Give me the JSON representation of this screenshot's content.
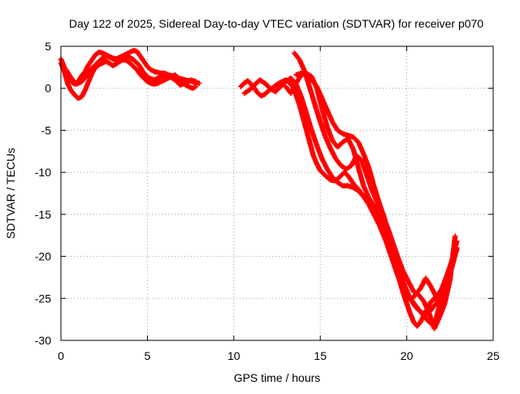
{
  "chart_data": {
    "type": "scatter",
    "title": "Day 122 of 2025, Sidereal Day-to-day VTEC variation (SDTVAR) for receiver p070",
    "xlabel": "GPS time / hours",
    "ylabel": "SDTVAR / TECUs",
    "xlim": [
      0,
      25
    ],
    "ylim": [
      -30,
      5
    ],
    "x_ticks": [
      0,
      5,
      10,
      15,
      20,
      25
    ],
    "y_ticks": [
      5,
      0,
      -5,
      -10,
      -15,
      -20,
      -25,
      -30
    ],
    "grid": true,
    "marker": "plus",
    "color": "#ff0000",
    "series": [
      {
        "x": [
          0.0,
          0.2,
          0.4,
          0.6,
          0.8,
          1.0,
          1.2,
          1.4,
          1.6,
          1.8,
          2.0,
          2.2,
          2.4,
          2.6,
          2.8,
          3.0,
          3.2,
          3.4,
          3.6,
          3.8,
          4.0,
          4.2,
          4.4,
          4.6,
          4.8,
          5.0,
          5.2,
          5.4,
          5.6,
          5.8,
          6.0,
          6.2,
          6.4,
          6.6,
          6.8,
          7.0,
          7.2,
          7.4,
          7.6,
          7.8,
          8.0
        ],
        "values": [
          3.5,
          2.5,
          1.5,
          0.8,
          0.5,
          0.8,
          1.5,
          2.0,
          2.8,
          3.4,
          4.0,
          4.3,
          4.2,
          4.0,
          3.8,
          3.6,
          3.5,
          3.7,
          3.9,
          4.1,
          4.3,
          4.5,
          4.4,
          3.8,
          3.2,
          2.6,
          2.2,
          2.0,
          1.9,
          1.8,
          1.8,
          1.6,
          1.5,
          1.3,
          1.2,
          1.1,
          1.0,
          0.9,
          0.8,
          0.7,
          0.6
        ]
      },
      {
        "x": [
          0.0,
          0.2,
          0.4,
          0.6,
          0.8,
          1.0,
          1.2,
          1.4,
          1.6,
          1.8,
          2.0,
          2.2,
          2.4,
          2.6,
          2.8,
          3.0,
          3.2,
          3.4,
          3.6,
          3.8,
          4.0,
          4.2,
          4.4,
          4.6,
          4.8,
          5.0,
          5.2,
          5.4,
          5.6,
          5.8,
          6.0,
          6.2,
          6.4,
          6.6,
          6.8,
          7.0,
          7.2,
          7.4,
          7.6,
          7.8
        ],
        "values": [
          3.0,
          2.0,
          0.5,
          -0.3,
          -0.8,
          -1.2,
          -1.0,
          -0.2,
          0.8,
          1.8,
          2.5,
          2.8,
          3.0,
          3.2,
          3.0,
          2.7,
          2.9,
          3.2,
          3.4,
          3.3,
          3.0,
          2.6,
          2.2,
          1.6,
          1.2,
          0.8,
          0.6,
          0.5,
          0.6,
          0.8,
          1.0,
          1.2,
          1.4,
          1.6,
          1.2,
          0.8,
          0.4,
          0.2,
          0.0,
          0.2
        ]
      },
      {
        "x": [
          0.3,
          0.6,
          0.9,
          1.2,
          1.5,
          1.8,
          2.1,
          2.4,
          2.7,
          3.0,
          3.3,
          3.6,
          3.9,
          4.2,
          4.5,
          4.8,
          5.1,
          5.4,
          5.7,
          6.0,
          6.3,
          6.6,
          6.9,
          7.2,
          7.5,
          7.8
        ],
        "values": [
          2.2,
          1.2,
          0.5,
          0.8,
          1.5,
          2.4,
          3.0,
          3.6,
          3.8,
          3.5,
          3.3,
          3.6,
          3.8,
          3.4,
          2.8,
          1.8,
          1.2,
          1.0,
          1.3,
          1.6,
          1.4,
          1.0,
          0.4,
          0.6,
          1.0,
          0.8
        ]
      },
      {
        "x": [
          10.4,
          10.6,
          10.8,
          11.0,
          11.2,
          11.4,
          11.6,
          11.8,
          12.0,
          12.2,
          12.4,
          12.6,
          12.8,
          13.0,
          13.2,
          13.4,
          13.6,
          13.8,
          14.0,
          14.2,
          14.4,
          14.6,
          14.8,
          15.0,
          15.2,
          15.4,
          15.6,
          15.8,
          16.0,
          16.2,
          16.4,
          16.6,
          16.8,
          17.0,
          17.2,
          17.4,
          17.6,
          17.8,
          18.0,
          18.2,
          18.4,
          18.6,
          18.8,
          19.0,
          19.2,
          19.4,
          19.6,
          19.8,
          20.0,
          20.2,
          20.4,
          20.6,
          20.8,
          21.0,
          21.2,
          21.4,
          21.6,
          21.8,
          22.0,
          22.2,
          22.4,
          22.6,
          22.8
        ],
        "values": [
          0.2,
          0.6,
          0.9,
          0.5,
          0.0,
          -0.6,
          -0.9,
          -0.7,
          -0.3,
          0.0,
          0.3,
          0.6,
          0.8,
          1.0,
          0.7,
          0.2,
          -0.8,
          -2.0,
          -3.5,
          -5.0,
          -6.5,
          -8.0,
          -9.0,
          -9.8,
          -10.2,
          -10.6,
          -10.9,
          -11.0,
          -10.8,
          -10.4,
          -10.0,
          -10.4,
          -11.0,
          -11.6,
          -12.0,
          -12.6,
          -13.2,
          -13.8,
          -14.6,
          -15.4,
          -16.2,
          -17.2,
          -18.2,
          -19.4,
          -20.6,
          -21.8,
          -23.0,
          -24.4,
          -25.6,
          -26.8,
          -27.8,
          -28.3,
          -27.8,
          -27.0,
          -26.2,
          -25.4,
          -25.0,
          -24.6,
          -24.0,
          -23.2,
          -22.4,
          -21.0,
          -19.4
        ]
      },
      {
        "x": [
          10.6,
          10.9,
          11.2,
          11.5,
          11.8,
          12.1,
          12.4,
          12.7,
          13.0,
          13.3,
          13.6,
          13.9,
          14.2,
          14.5,
          14.8,
          15.1,
          15.4,
          15.7,
          16.0,
          16.3,
          16.6,
          16.9,
          17.2,
          17.5,
          17.8,
          18.1,
          18.4,
          18.7,
          19.0,
          19.3,
          19.6,
          19.9,
          20.2,
          20.5,
          20.8,
          21.1,
          21.4,
          21.7,
          22.0,
          22.3,
          22.6,
          22.9
        ],
        "values": [
          -0.6,
          -0.2,
          0.4,
          1.0,
          0.6,
          0.0,
          -0.4,
          0.2,
          0.8,
          1.2,
          0.5,
          -1.0,
          -3.0,
          -5.0,
          -6.8,
          -8.4,
          -9.6,
          -10.6,
          -11.2,
          -11.6,
          -11.6,
          -11.8,
          -12.2,
          -12.8,
          -13.6,
          -14.4,
          -15.4,
          -16.8,
          -18.4,
          -20.2,
          -22.0,
          -23.6,
          -25.0,
          -26.0,
          -26.6,
          -27.0,
          -26.4,
          -25.6,
          -24.6,
          -23.2,
          -21.4,
          -19.0
        ]
      },
      {
        "x": [
          13.5,
          13.8,
          14.1,
          14.4,
          14.7,
          15.0,
          15.3,
          15.6,
          15.9,
          16.2,
          16.5,
          16.8,
          17.1,
          17.4,
          17.7,
          18.0,
          18.3,
          18.6,
          18.9,
          19.2,
          19.5,
          19.8,
          20.1,
          20.4,
          20.7,
          21.0,
          21.3,
          21.6,
          21.9,
          22.2,
          22.5,
          22.8
        ],
        "values": [
          4.2,
          3.4,
          2.0,
          0.0,
          -2.0,
          -4.0,
          -5.8,
          -7.2,
          -8.4,
          -9.2,
          -9.6,
          -9.2,
          -8.0,
          -8.6,
          -10.4,
          -12.2,
          -13.6,
          -15.0,
          -16.6,
          -18.4,
          -20.2,
          -21.8,
          -23.0,
          -24.2,
          -24.6,
          -25.4,
          -26.8,
          -28.6,
          -27.2,
          -25.6,
          -22.8,
          -17.6
        ]
      },
      {
        "x": [
          13.6,
          13.9,
          14.2,
          14.5,
          14.8,
          15.1,
          15.4,
          15.7,
          16.0,
          16.3,
          16.6,
          16.9,
          17.2,
          17.5,
          17.8,
          18.1,
          18.4,
          18.7,
          19.0,
          19.3,
          19.6,
          19.9,
          20.2,
          20.5,
          20.8,
          21.1,
          21.4,
          21.7,
          22.0,
          22.3,
          22.6,
          22.9
        ],
        "values": [
          1.6,
          1.8,
          1.8,
          1.4,
          0.0,
          -2.4,
          -4.6,
          -6.2,
          -7.0,
          -6.4,
          -6.0,
          -7.2,
          -9.4,
          -11.6,
          -13.0,
          -14.0,
          -15.2,
          -16.8,
          -18.6,
          -20.6,
          -22.6,
          -24.2,
          -25.2,
          -24.6,
          -23.8,
          -22.6,
          -23.6,
          -24.8,
          -24.0,
          -22.4,
          -20.6,
          -18.2
        ]
      },
      {
        "x": [
          13.0,
          13.3,
          13.6,
          13.9,
          14.2,
          14.5,
          14.8,
          15.1,
          15.4,
          15.7,
          16.0,
          16.3,
          16.6,
          16.9,
          17.2,
          17.5,
          17.8,
          18.1,
          18.4,
          18.7,
          19.0,
          19.3,
          19.6,
          19.9,
          20.2,
          20.5,
          20.8,
          21.1,
          21.4,
          21.7,
          22.0,
          22.3,
          22.6,
          22.9
        ],
        "values": [
          0.2,
          -0.6,
          0.6,
          1.6,
          1.8,
          1.0,
          0.2,
          -1.2,
          -2.6,
          -4.0,
          -5.0,
          -5.4,
          -5.6,
          -5.8,
          -6.4,
          -7.8,
          -9.4,
          -11.6,
          -13.6,
          -15.4,
          -17.8,
          -20.4,
          -22.4,
          -24.0,
          -25.0,
          -25.8,
          -26.6,
          -27.4,
          -28.0,
          -27.4,
          -25.0,
          -22.8,
          -20.8,
          -19.2
        ]
      }
    ]
  }
}
